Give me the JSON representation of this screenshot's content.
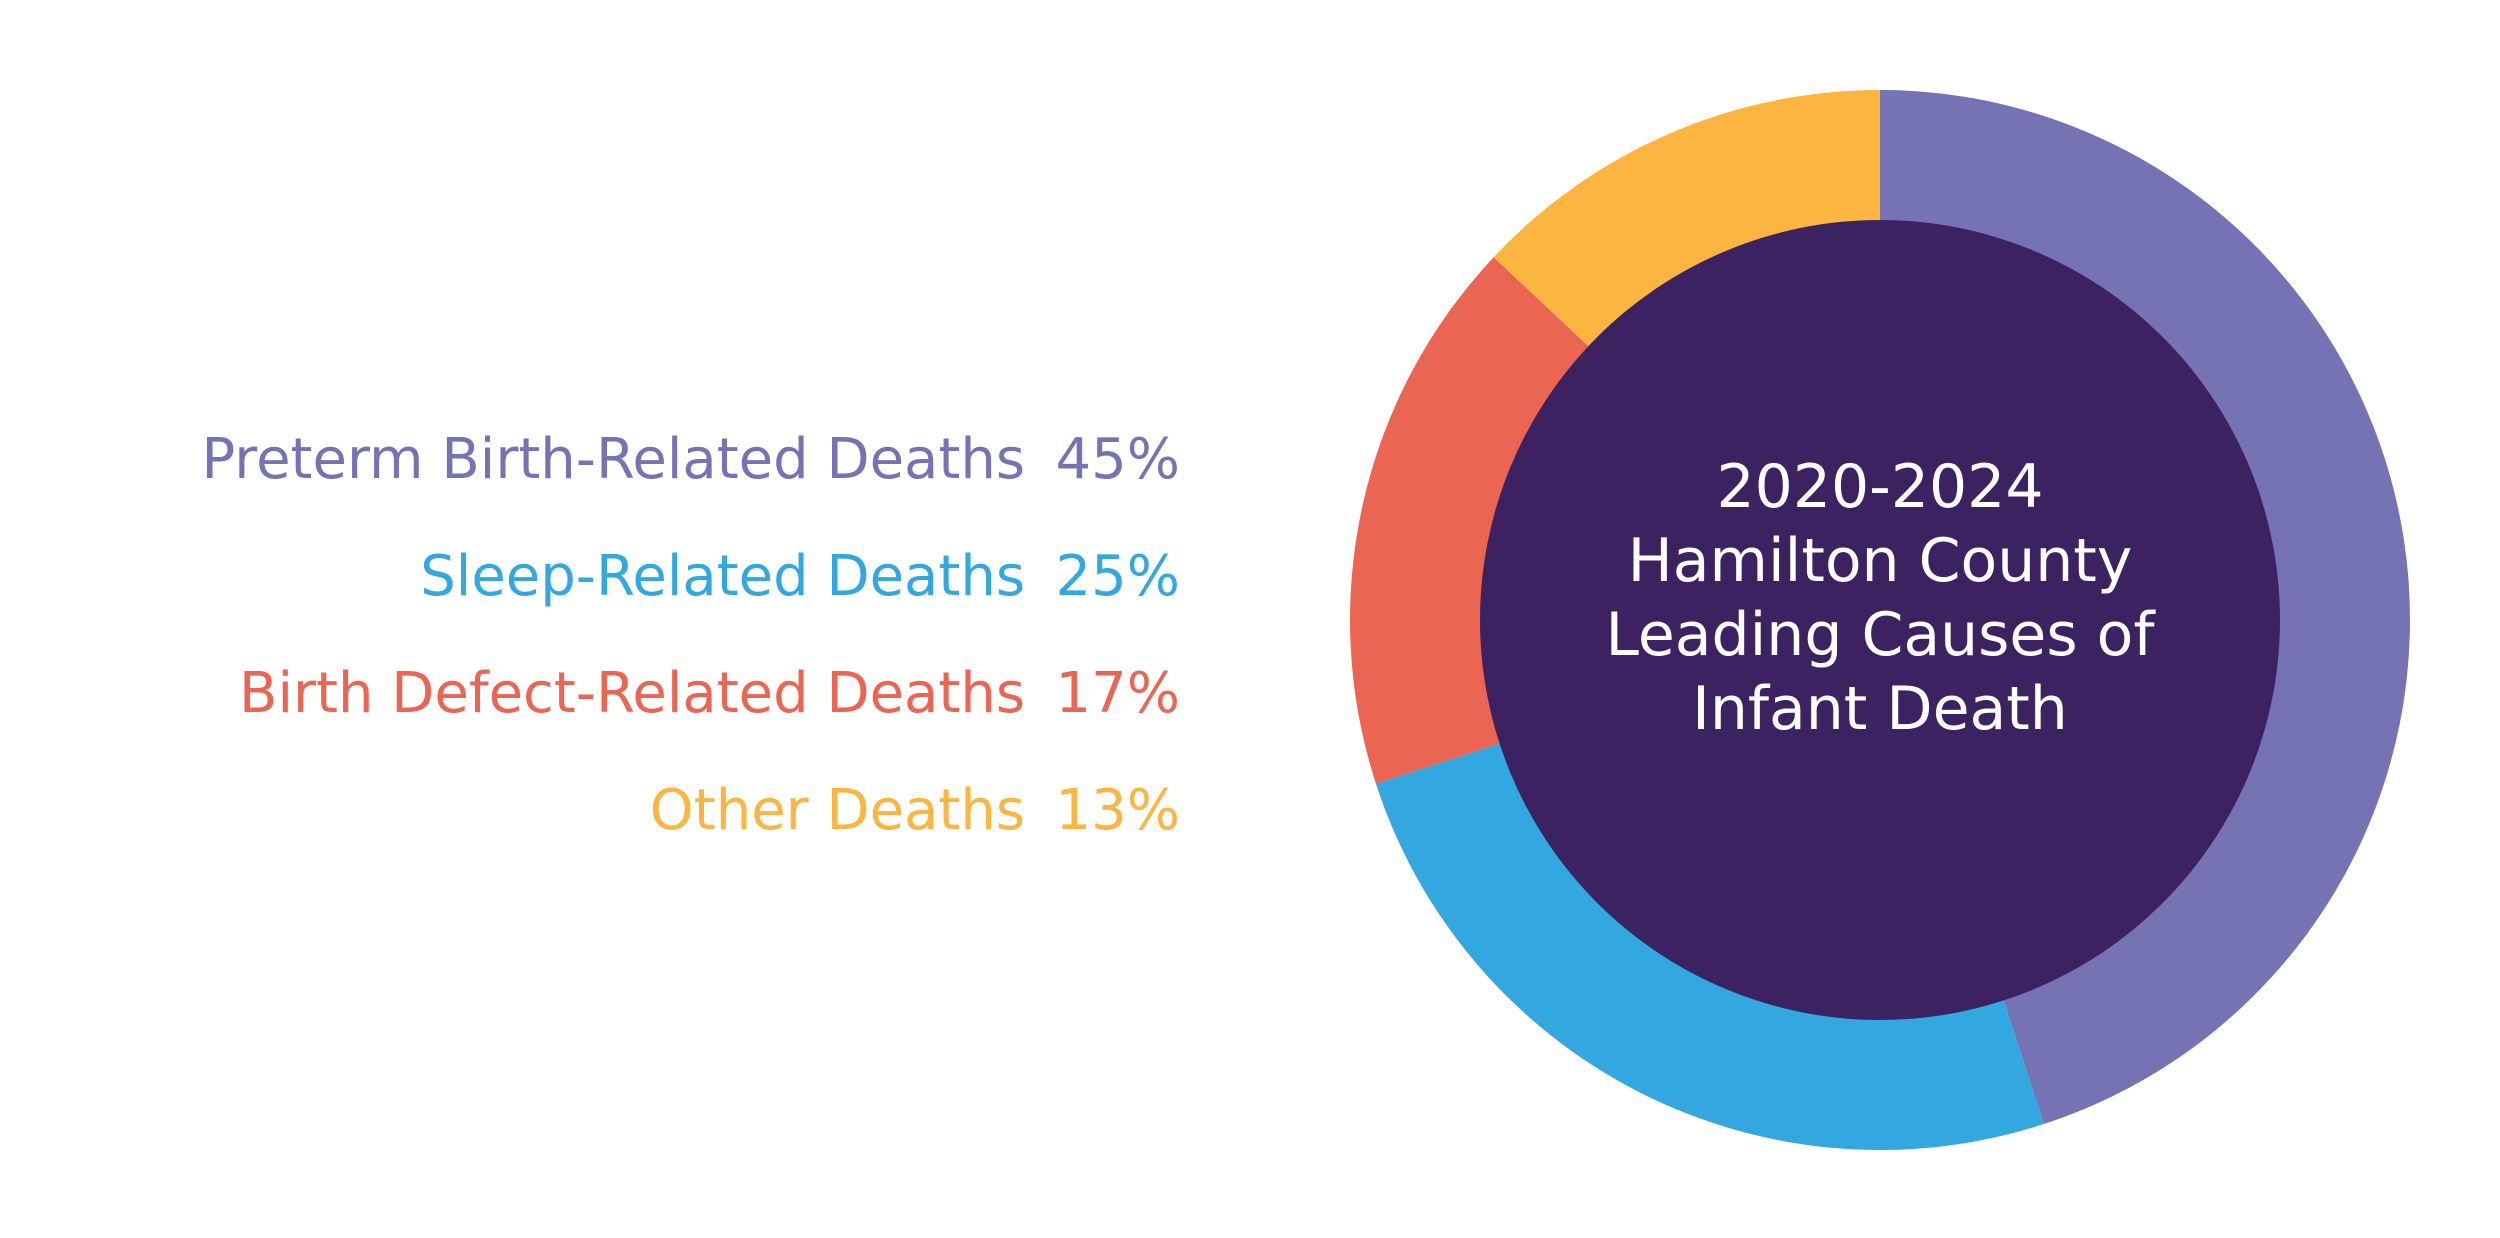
{
  "chart_data": {
    "type": "pie",
    "style": "donut",
    "center_title_lines": [
      "2020-2024",
      "Hamilton County",
      "Leading Causes of",
      "Infant Death"
    ],
    "legend_placement": "left",
    "center_color": "#3d2262",
    "slices": [
      {
        "label": "Preterm Birth-Related Deaths",
        "value": 45,
        "display": "45%",
        "color": "#7673b5"
      },
      {
        "label": "Sleep-Related Deaths",
        "value": 25,
        "display": "25%",
        "color": "#33a8e0"
      },
      {
        "label": "Birth Defect-Related Deaths",
        "value": 17,
        "display": "17%",
        "color": "#ea6653"
      },
      {
        "label": "Other Deaths",
        "value": 13,
        "display": "13%",
        "color": "#fbb540"
      }
    ]
  }
}
